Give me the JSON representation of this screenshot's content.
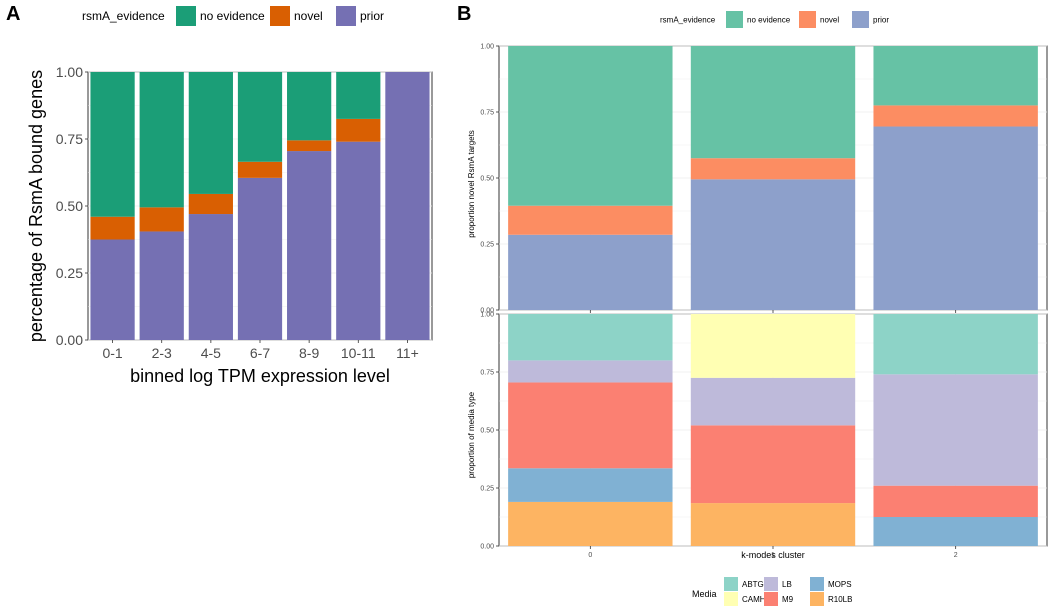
{
  "panelA": {
    "label": "A",
    "legend_title": "rsmA_evidence",
    "xlabel": "binned log TPM expression level",
    "ylabel": "percentage of RsmA bound genes",
    "categories": [
      "0-1",
      "2-3",
      "4-5",
      "6-7",
      "8-9",
      "10-11",
      "11+"
    ],
    "yticks": [
      "0.00",
      "0.25",
      "0.50",
      "0.75",
      "1.00"
    ],
    "ylim": [
      0,
      1
    ],
    "series": [
      {
        "name": "prior",
        "color": "#7570b3",
        "values": [
          0.375,
          0.405,
          0.47,
          0.605,
          0.705,
          0.74,
          1.0
        ]
      },
      {
        "name": "novel",
        "color": "#d95f02",
        "values": [
          0.085,
          0.09,
          0.075,
          0.06,
          0.04,
          0.085,
          0.0
        ]
      },
      {
        "name": "no evidence",
        "color": "#1b9e77",
        "values": [
          0.54,
          0.505,
          0.455,
          0.335,
          0.255,
          0.175,
          0.0
        ]
      }
    ],
    "legend_order": [
      "no evidence",
      "novel",
      "prior"
    ]
  },
  "panelB": {
    "label": "B",
    "xlabel": "k-modes cluster",
    "categories": [
      "0",
      "1",
      "2"
    ],
    "yticks": [
      "0.00",
      "0.25",
      "0.50",
      "0.75",
      "1.00"
    ],
    "top": {
      "legend_title": "rsmA_evidence",
      "ylabel": "proportion novel RsmA targets",
      "ylim": [
        0,
        1
      ],
      "series": [
        {
          "name": "prior",
          "color": "#8da0cb",
          "values": [
            0.285,
            0.495,
            0.695
          ]
        },
        {
          "name": "novel",
          "color": "#fc8d62",
          "values": [
            0.11,
            0.08,
            0.08
          ]
        },
        {
          "name": "no evidence",
          "color": "#66c2a5",
          "values": [
            0.605,
            0.425,
            0.225
          ]
        }
      ],
      "legend_order": [
        "no evidence",
        "novel",
        "prior"
      ]
    },
    "bottom": {
      "legend_title": "Media",
      "ylabel": "proportion of media type",
      "ylim": [
        0,
        1
      ],
      "series": [
        {
          "name": "R10LB",
          "color": "#fdb462",
          "values": [
            0.19,
            0.185,
            0.0
          ]
        },
        {
          "name": "MOPS",
          "color": "#80b1d3",
          "values": [
            0.145,
            0.0,
            0.125
          ]
        },
        {
          "name": "M9",
          "color": "#fb8072",
          "values": [
            0.37,
            0.335,
            0.135
          ]
        },
        {
          "name": "LB",
          "color": "#bebada",
          "values": [
            0.095,
            0.205,
            0.48
          ]
        },
        {
          "name": "CAMHB",
          "color": "#ffffb3",
          "values": [
            0.0,
            0.275,
            0.0
          ]
        },
        {
          "name": "ABTGC",
          "color": "#8dd3c7",
          "values": [
            0.2,
            0.0,
            0.26
          ]
        }
      ],
      "legend_rows": [
        [
          "ABTGC",
          "LB",
          "MOPS"
        ],
        [
          "CAMHB",
          "M9",
          "R10LB"
        ]
      ]
    }
  }
}
